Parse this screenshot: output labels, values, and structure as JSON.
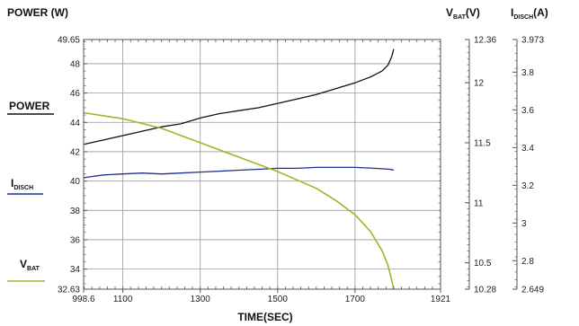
{
  "chart_data": {
    "type": "line",
    "xlabel": "TIME(SEC)",
    "xlim": [
      998.6,
      1921
    ],
    "x_ticks": [
      "998.6",
      "1100",
      "1300",
      "1500",
      "1700",
      "1921"
    ],
    "axes": {
      "power": {
        "label_main": "POWER (W)",
        "ylim": [
          32.63,
          49.65
        ],
        "ticks": [
          "32.63",
          "34",
          "36",
          "38",
          "40",
          "42",
          "44",
          "46",
          "48",
          "49.65"
        ]
      },
      "vbat": {
        "label_main": "V",
        "label_sub": "BAT",
        "label_unit": "(V)",
        "ylim": [
          10.28,
          12.36
        ],
        "ticks": [
          "10.28",
          "10.5",
          "11",
          "11.5",
          "12",
          "12.36"
        ]
      },
      "idisch": {
        "label_main": "I",
        "label_sub": "DISCH",
        "label_unit": "(A)",
        "ylim": [
          2.649,
          3.973
        ],
        "ticks": [
          "2.649",
          "2.8",
          "3",
          "3.2",
          "3.4",
          "3.6",
          "3.8",
          "3.973"
        ]
      }
    },
    "legend": [
      {
        "main": "POWER",
        "sub": ""
      },
      {
        "main": "I",
        "sub": "DISCH"
      },
      {
        "main": "V",
        "sub": "BAT"
      }
    ],
    "series": [
      {
        "name": "POWER",
        "axis": "power",
        "color": "#111111",
        "x": [
          998.6,
          1050,
          1100,
          1150,
          1200,
          1250,
          1300,
          1350,
          1400,
          1450,
          1500,
          1550,
          1600,
          1650,
          1700,
          1740,
          1770,
          1785,
          1795,
          1800
        ],
        "y": [
          42.5,
          42.8,
          43.1,
          43.4,
          43.7,
          43.9,
          44.3,
          44.6,
          44.8,
          45.0,
          45.3,
          45.6,
          45.9,
          46.3,
          46.7,
          47.1,
          47.5,
          47.9,
          48.5,
          49.0
        ]
      },
      {
        "name": "IDISCH",
        "axis": "idisch",
        "color": "#1f2f8f",
        "x": [
          998.6,
          1050,
          1100,
          1150,
          1200,
          1250,
          1300,
          1350,
          1400,
          1450,
          1500,
          1550,
          1600,
          1650,
          1700,
          1750,
          1790,
          1800
        ],
        "y": [
          3.24,
          3.255,
          3.26,
          3.265,
          3.26,
          3.265,
          3.27,
          3.275,
          3.28,
          3.285,
          3.29,
          3.29,
          3.295,
          3.295,
          3.295,
          3.29,
          3.285,
          3.28
        ]
      },
      {
        "name": "VBAT",
        "axis": "vbat",
        "color": "#9fb52a",
        "x": [
          998.6,
          1100,
          1200,
          1300,
          1400,
          1500,
          1600,
          1650,
          1700,
          1740,
          1770,
          1785,
          1795,
          1800
        ],
        "y": [
          11.75,
          11.7,
          11.62,
          11.5,
          11.38,
          11.26,
          11.12,
          11.02,
          10.9,
          10.76,
          10.6,
          10.48,
          10.35,
          10.28
        ]
      }
    ]
  }
}
